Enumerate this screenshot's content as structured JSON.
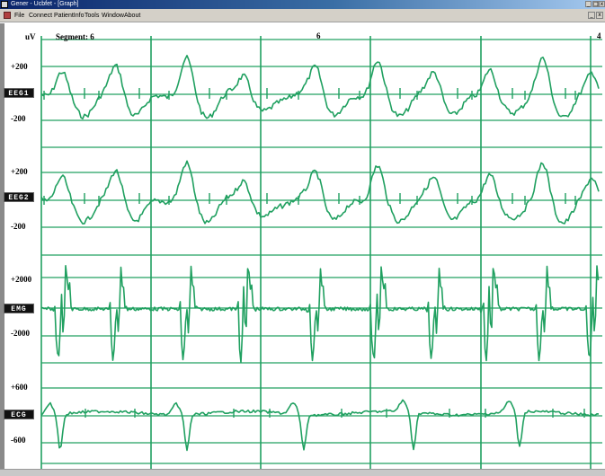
{
  "window": {
    "title": "Gener - Ucbfet - [Graph]",
    "controls": [
      "_",
      "□",
      "x"
    ]
  },
  "menu": {
    "items": [
      "File",
      "Connect",
      "PatientInfo",
      "Tools",
      "Window",
      "About"
    ],
    "mdi_controls": [
      "_",
      "x"
    ]
  },
  "graph": {
    "unit": "uV",
    "segment_label": "Segment: 6",
    "marker_mid": "6",
    "marker_end": "4",
    "trace_color": "#20a060",
    "grid_color": "#20a060",
    "channels": [
      {
        "name": "EEG1",
        "scale_top": "+200",
        "scale_bottom": "-200"
      },
      {
        "name": "EEG2",
        "scale_top": "+200",
        "scale_bottom": "-200"
      },
      {
        "name": "EMG",
        "scale_top": "+2000",
        "scale_bottom": "-2000"
      },
      {
        "name": "ECG",
        "scale_top": "+600",
        "scale_bottom": "-600"
      }
    ]
  }
}
